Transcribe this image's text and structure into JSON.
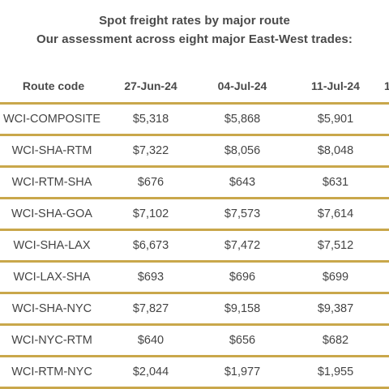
{
  "title_line1": "Spot freight rates by major route",
  "title_line2": "Our assessment across eight major East-West trades:",
  "header": {
    "route_code": "Route code",
    "col1": "27-Jun-24",
    "col2": "04-Jul-24",
    "col3": "11-Jul-24",
    "col4": "1"
  },
  "rows": [
    {
      "code": "WCI-COMPOSITE",
      "v1": "$5,318",
      "v2": "$5,868",
      "v3": "$5,901"
    },
    {
      "code": "WCI-SHA-RTM",
      "v1": "$7,322",
      "v2": "$8,056",
      "v3": "$8,048"
    },
    {
      "code": "WCI-RTM-SHA",
      "v1": "$676",
      "v2": "$643",
      "v3": "$631"
    },
    {
      "code": "WCI-SHA-GOA",
      "v1": "$7,102",
      "v2": "$7,573",
      "v3": "$7,614"
    },
    {
      "code": "WCI-SHA-LAX",
      "v1": "$6,673",
      "v2": "$7,472",
      "v3": "$7,512"
    },
    {
      "code": "WCI-LAX-SHA",
      "v1": "$693",
      "v2": "$696",
      "v3": "$699"
    },
    {
      "code": "WCI-SHA-NYC",
      "v1": "$7,827",
      "v2": "$9,158",
      "v3": "$9,387"
    },
    {
      "code": "WCI-NYC-RTM",
      "v1": "$640",
      "v2": "$656",
      "v3": "$682"
    },
    {
      "code": "WCI-RTM-NYC",
      "v1": "$2,044",
      "v2": "$1,977",
      "v3": "$1,955"
    }
  ],
  "colors": {
    "rule": "#c9a74b",
    "text": "#444444"
  }
}
